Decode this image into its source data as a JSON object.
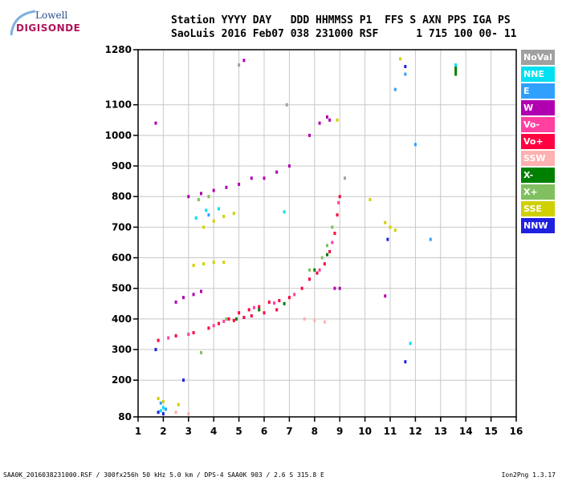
{
  "logo": {
    "line1": "Lowell",
    "line2": "DIGISONDE"
  },
  "header": {
    "line1": "Station YYYY DAY   DDD HHMMSS P1  FFS S AXN PPS IGA PS",
    "line2": "SaoLuis 2016 Feb07 038 231000 RSF      1 715 100 00- 11"
  },
  "footer": {
    "left": "SAA0K_2016038231000.RSF / 300fx256h 50 kHz 5.0 km / DPS-4 SAA0K 903 / 2.6 S 315.8 E",
    "right": "Ion2Png 1.3.17"
  },
  "legend": [
    {
      "label": "NoVal",
      "color": "#a0a0a0"
    },
    {
      "label": "NNE",
      "color": "#00e0f0"
    },
    {
      "label": "E",
      "color": "#30a0ff"
    },
    {
      "label": "W",
      "color": "#b000b0"
    },
    {
      "label": "Vo-",
      "color": "#ff40a0"
    },
    {
      "label": "Vo+",
      "color": "#ff0040"
    },
    {
      "label": "SSW",
      "color": "#ffb0b0"
    },
    {
      "label": "X-",
      "color": "#008000"
    },
    {
      "label": "X+",
      "color": "#80c060"
    },
    {
      "label": "SSE",
      "color": "#d0d000"
    },
    {
      "label": "NNW",
      "color": "#2020e0"
    }
  ],
  "chart_data": {
    "type": "scatter",
    "xlim": [
      1,
      16
    ],
    "ylim": [
      80,
      1280
    ],
    "x_ticks": [
      1,
      2,
      3,
      4,
      5,
      6,
      7,
      8,
      9,
      10,
      11,
      12,
      13,
      14,
      15,
      16
    ],
    "y_ticks": [
      80,
      200,
      300,
      400,
      500,
      600,
      700,
      800,
      900,
      1000,
      1100,
      1280
    ],
    "grid": true,
    "legend_position": "right",
    "series": [
      {
        "name": "Vo+",
        "color": "#ff0040",
        "points": [
          [
            1.8,
            330
          ],
          [
            2.5,
            345
          ],
          [
            3.2,
            355
          ],
          [
            3.8,
            370
          ],
          [
            4.2,
            385
          ],
          [
            4.6,
            400
          ],
          [
            5.0,
            420
          ],
          [
            5.4,
            430
          ],
          [
            5.8,
            440
          ],
          [
            6.2,
            455
          ],
          [
            6.6,
            460
          ],
          [
            7.0,
            470
          ],
          [
            7.5,
            500
          ],
          [
            7.8,
            530
          ],
          [
            8.1,
            550
          ],
          [
            8.4,
            580
          ],
          [
            8.6,
            620
          ],
          [
            8.8,
            680
          ],
          [
            8.9,
            740
          ],
          [
            9.0,
            800
          ],
          [
            5.5,
            410
          ],
          [
            6.0,
            420
          ],
          [
            6.5,
            430
          ],
          [
            4.8,
            395
          ],
          [
            5.2,
            405
          ]
        ]
      },
      {
        "name": "Vo-",
        "color": "#ff40a0",
        "points": [
          [
            2.2,
            338
          ],
          [
            3.0,
            350
          ],
          [
            4.0,
            378
          ],
          [
            4.4,
            392
          ],
          [
            5.6,
            437
          ],
          [
            6.4,
            452
          ],
          [
            7.2,
            480
          ],
          [
            8.2,
            560
          ],
          [
            8.7,
            650
          ],
          [
            8.95,
            780
          ]
        ]
      },
      {
        "name": "W",
        "color": "#b000b0",
        "points": [
          [
            1.7,
            1040
          ],
          [
            2.5,
            455
          ],
          [
            2.8,
            470
          ],
          [
            3.2,
            480
          ],
          [
            3.5,
            490
          ],
          [
            3.0,
            800
          ],
          [
            3.5,
            810
          ],
          [
            4.0,
            820
          ],
          [
            4.5,
            830
          ],
          [
            5.0,
            840
          ],
          [
            5.5,
            860
          ],
          [
            6.0,
            860
          ],
          [
            6.5,
            880
          ],
          [
            7.0,
            900
          ],
          [
            7.8,
            1000
          ],
          [
            8.2,
            1040
          ],
          [
            8.5,
            1060
          ],
          [
            9.0,
            500
          ],
          [
            8.8,
            500
          ],
          [
            10.8,
            475
          ],
          [
            5.2,
            1245
          ],
          [
            8.6,
            1050
          ]
        ]
      },
      {
        "name": "X+",
        "color": "#80c060",
        "points": [
          [
            3.4,
            790
          ],
          [
            3.8,
            800
          ],
          [
            7.8,
            560
          ],
          [
            8.3,
            600
          ],
          [
            8.5,
            640
          ],
          [
            8.7,
            700
          ],
          [
            3.5,
            290
          ],
          [
            4.5,
            400
          ]
        ]
      },
      {
        "name": "X-",
        "color": "#008000",
        "points": [
          [
            4.9,
            400
          ],
          [
            5.8,
            430
          ],
          [
            6.8,
            450
          ],
          [
            8.0,
            560
          ],
          [
            8.5,
            610
          ],
          [
            13.6,
            1200
          ],
          [
            13.6,
            1210
          ],
          [
            13.6,
            1220
          ]
        ]
      },
      {
        "name": "SSE",
        "color": "#d0d000",
        "points": [
          [
            3.2,
            575
          ],
          [
            3.6,
            580
          ],
          [
            4.0,
            585
          ],
          [
            4.4,
            585
          ],
          [
            3.6,
            700
          ],
          [
            4.0,
            720
          ],
          [
            4.4,
            735
          ],
          [
            4.8,
            745
          ],
          [
            1.8,
            140
          ],
          [
            2.0,
            130
          ],
          [
            10.8,
            715
          ],
          [
            11.0,
            700
          ],
          [
            11.2,
            690
          ],
          [
            11.4,
            1250
          ],
          [
            8.9,
            1050
          ],
          [
            10.2,
            790
          ],
          [
            2.6,
            120
          ]
        ]
      },
      {
        "name": "NNE",
        "color": "#00e0f0",
        "points": [
          [
            1.9,
            100
          ],
          [
            2.0,
            110
          ],
          [
            3.3,
            730
          ],
          [
            3.7,
            755
          ],
          [
            4.2,
            760
          ],
          [
            6.8,
            750
          ],
          [
            11.8,
            320
          ],
          [
            13.6,
            1230
          ]
        ]
      },
      {
        "name": "E",
        "color": "#30a0ff",
        "points": [
          [
            1.9,
            125
          ],
          [
            2.1,
            105
          ],
          [
            3.8,
            740
          ],
          [
            11.2,
            1150
          ],
          [
            12.0,
            970
          ],
          [
            12.6,
            660
          ],
          [
            11.6,
            1200
          ]
        ]
      },
      {
        "name": "NNW",
        "color": "#2020e0",
        "points": [
          [
            1.7,
            300
          ],
          [
            1.8,
            95
          ],
          [
            2.0,
            90
          ],
          [
            2.8,
            200
          ],
          [
            11.6,
            260
          ],
          [
            11.6,
            1225
          ],
          [
            10.9,
            660
          ]
        ]
      },
      {
        "name": "SSW",
        "color": "#ffb0b0",
        "points": [
          [
            7.6,
            400
          ],
          [
            8.0,
            395
          ],
          [
            8.4,
            390
          ],
          [
            2.5,
            95
          ],
          [
            3.0,
            90
          ]
        ]
      },
      {
        "name": "NoVal",
        "color": "#a0a0a0",
        "points": [
          [
            5.0,
            1230
          ],
          [
            9.2,
            860
          ],
          [
            6.9,
            1100
          ]
        ]
      }
    ]
  }
}
